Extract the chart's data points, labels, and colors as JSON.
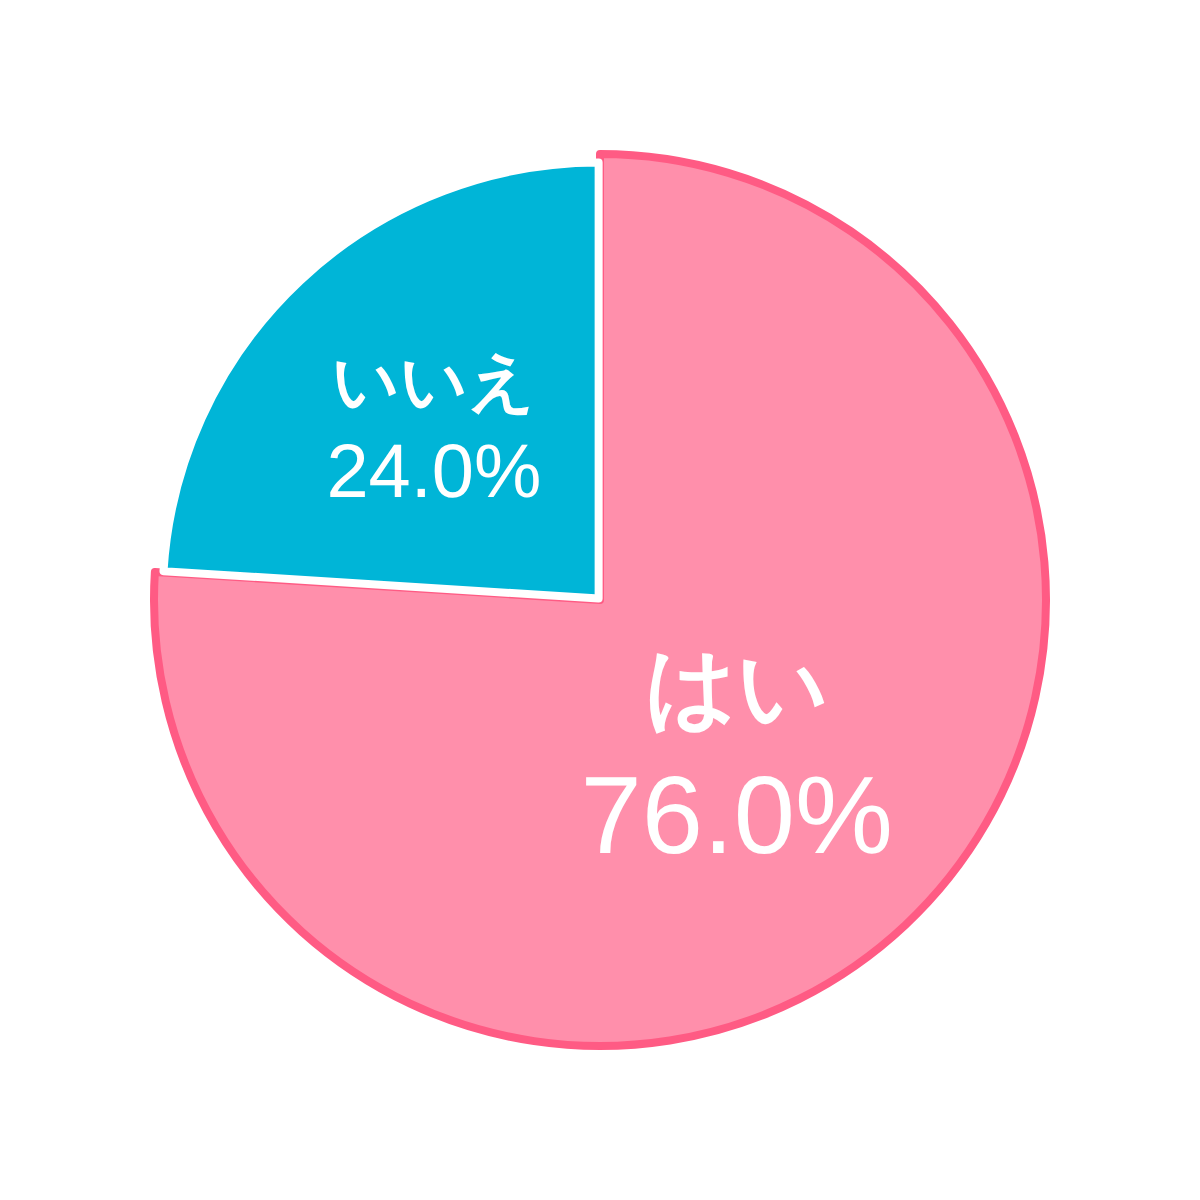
{
  "chart_data": {
    "type": "pie",
    "categories": [
      "はい",
      "いいえ"
    ],
    "values": [
      76.0,
      24.0
    ],
    "colors": [
      "#ff8fab",
      "#00b5d7"
    ],
    "value_labels": [
      "76.0%",
      "24.0%"
    ]
  }
}
